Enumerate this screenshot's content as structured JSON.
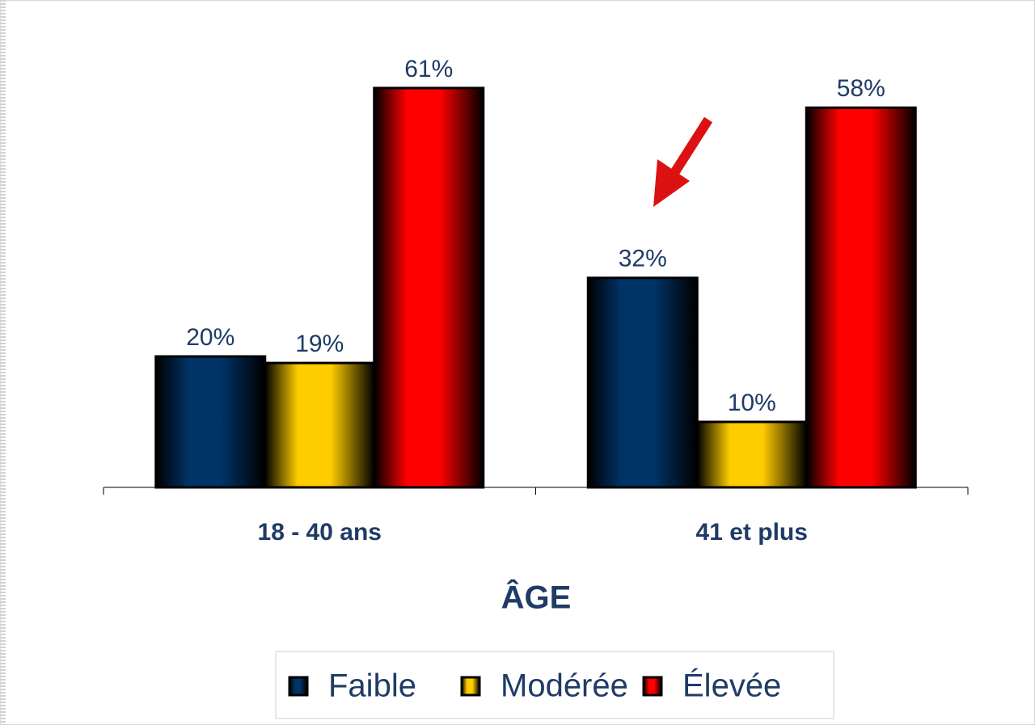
{
  "chart_data": {
    "type": "bar",
    "x_label": "ÂGE",
    "categories": [
      "18 - 40 ans",
      "41 et plus"
    ],
    "series": [
      {
        "name": "Faible",
        "color": "#003366",
        "values": [
          20,
          32
        ],
        "value_labels": [
          "20%",
          "32%"
        ]
      },
      {
        "name": "Modérée",
        "color": "#ffcc00",
        "values": [
          19,
          10
        ],
        "value_labels": [
          "19%",
          "10%"
        ]
      },
      {
        "name": "Élevée",
        "color": "#ff0000",
        "values": [
          61,
          58
        ],
        "value_labels": [
          "61%",
          "58%"
        ]
      }
    ],
    "legend": "bottom"
  }
}
